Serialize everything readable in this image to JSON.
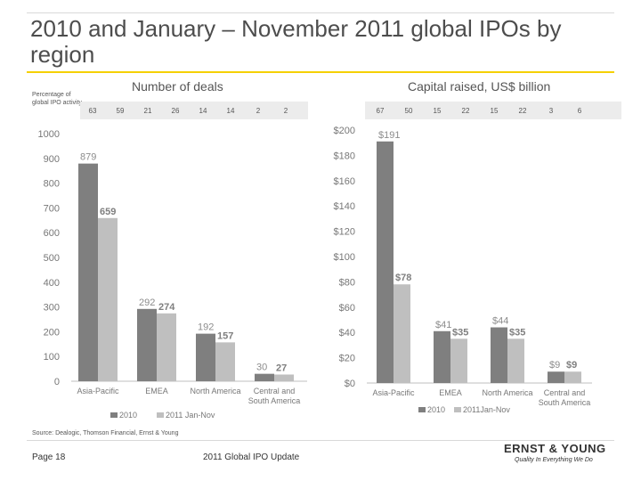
{
  "title": "2010 and January – November 2011 global IPOs by region",
  "pct_label": "Percentage of global IPO activity",
  "source": "Source: Dealogic, Thomson Financial, Ernst & Young",
  "footer": {
    "page": "Page 18",
    "doc": "2011 Global IPO Update"
  },
  "logo": {
    "name": "ERNST & YOUNG",
    "tagline": "Quality In Everything We Do"
  },
  "colors": {
    "series_2010": "#7f7f7f",
    "series_2011": "#bfbfbf",
    "accent": "#f5d000"
  },
  "chart_data": [
    {
      "type": "bar",
      "title": "Number of deals",
      "categories": [
        "Asia-Pacific",
        "EMEA",
        "North America",
        "Central and South America"
      ],
      "series": [
        {
          "name": "2010",
          "values": [
            879,
            292,
            192,
            30
          ],
          "labels": [
            "879",
            "292",
            "192",
            "30"
          ]
        },
        {
          "name": "2011 Jan-Nov",
          "values": [
            659,
            274,
            157,
            27
          ],
          "labels": [
            "659",
            "274",
            "157",
            "27"
          ]
        }
      ],
      "pct": [
        "63",
        "59",
        "21",
        "26",
        "14",
        "14",
        "2",
        "2"
      ],
      "ylim": [
        0,
        1000
      ],
      "yticks": [
        0,
        100,
        200,
        300,
        400,
        500,
        600,
        700,
        800,
        900,
        1000
      ],
      "ytick_labels": [
        "0",
        "100",
        "200",
        "300",
        "400",
        "500",
        "600",
        "700",
        "800",
        "900",
        "1000"
      ],
      "legend": "bottom"
    },
    {
      "type": "bar",
      "title": "Capital raised, US$ billion",
      "categories": [
        "Asia-Pacific",
        "EMEA",
        "North America",
        "Central and South America"
      ],
      "series": [
        {
          "name": "2010",
          "values": [
            191,
            41,
            44,
            9
          ],
          "labels": [
            "$191",
            "$41",
            "$44",
            "$9"
          ]
        },
        {
          "name": "2011Jan-Nov",
          "values": [
            78,
            35,
            35,
            9
          ],
          "labels": [
            "$78",
            "$35",
            "$35",
            "$9"
          ]
        }
      ],
      "pct": [
        "67",
        "50",
        "15",
        "22",
        "15",
        "22",
        "3",
        "6"
      ],
      "ylim": [
        0,
        200
      ],
      "yticks": [
        0,
        20,
        40,
        60,
        80,
        100,
        120,
        140,
        160,
        180,
        200
      ],
      "ytick_labels": [
        "$0",
        "$20",
        "$40",
        "$60",
        "$80",
        "$100",
        "$120",
        "$140",
        "$160",
        "$180",
        "$200"
      ],
      "legend": "bottom"
    }
  ]
}
